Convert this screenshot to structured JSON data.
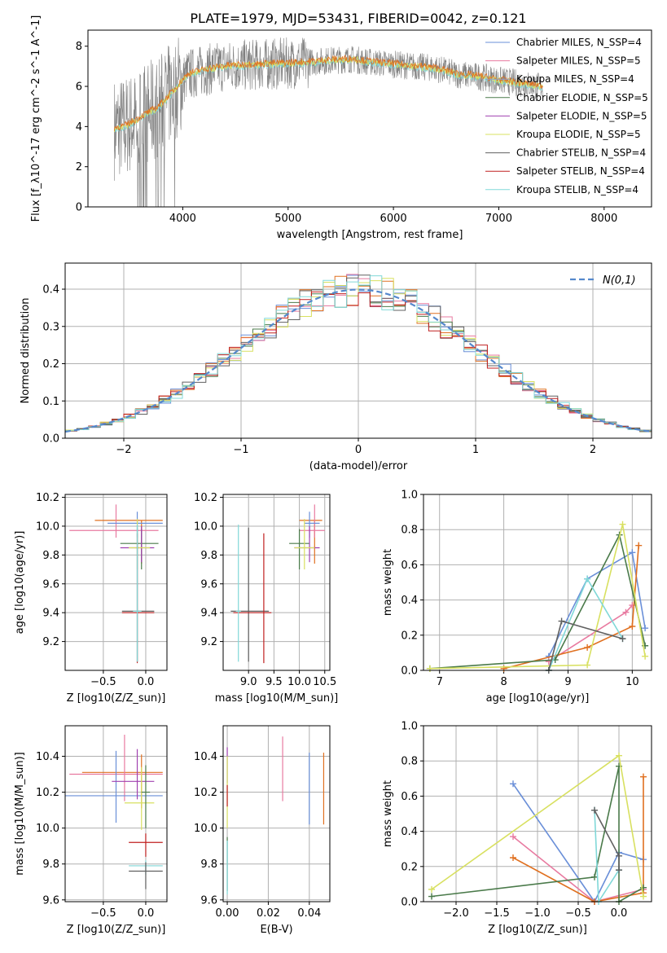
{
  "title": "PLATE=1979, MJD=53431, FIBERID=0042, z=0.121",
  "colors": {
    "chabrier_miles": "#6a8fd8",
    "salpeter_miles": "#e87aa0",
    "kroupa_miles": "#8aa0d0",
    "chabrier_elodie": "#e07020",
    "salpeter_elodie": "#a040b0",
    "kroupa_elodie": "#d8e060",
    "chabrier_stelib": "#606060",
    "salpeter_stelib": "#c02020",
    "kroupa_stelib": "#80d8d8",
    "extra_green": "#4a7a4a",
    "gauss": "#5588cc",
    "grid": "#b0b0b0"
  },
  "chart_data": [
    {
      "id": "spectrum",
      "type": "line",
      "xlabel": "wavelength [Angstrom, rest frame]",
      "ylabel": "Flux [f_λ10^-17 erg cm^-2 s^-1 A^-1]",
      "xlim": [
        3100,
        8450
      ],
      "ylim": [
        0,
        8.8
      ],
      "xticks": [
        4000,
        5000,
        6000,
        7000,
        8000
      ],
      "yticks": [
        0,
        2,
        4,
        6,
        8
      ],
      "grid": false,
      "legend_position": "top-right",
      "legend": [
        {
          "label": "Chabrier MILES, N_SSP=4",
          "color": "#6a8fd8"
        },
        {
          "label": "Salpeter MILES, N_SSP=5",
          "color": "#e87aa0"
        },
        {
          "label": "Kroupa MILES, N_SSP=4",
          "color": "#8aa0d0"
        },
        {
          "label": "Chabrier ELODIE, N_SSP=5",
          "color": "#4a7a4a"
        },
        {
          "label": "Salpeter ELODIE, N_SSP=5",
          "color": "#a040b0"
        },
        {
          "label": "Kroupa ELODIE, N_SSP=5",
          "color": "#d8e060"
        },
        {
          "label": "Chabrier STELIB, N_SSP=4",
          "color": "#606060"
        },
        {
          "label": "Salpeter STELIB, N_SSP=4",
          "color": "#c02020"
        },
        {
          "label": "Kroupa STELIB, N_SSP=4",
          "color": "#80d8d8"
        }
      ],
      "model_continuum": {
        "x": [
          3350,
          3450,
          3550,
          3650,
          3750,
          3850,
          3950,
          4050,
          4200,
          4400,
          4600,
          4800,
          5000,
          5200,
          5400,
          5600,
          5800,
          6000,
          6200,
          6400,
          6600,
          6800,
          7000,
          7200,
          7400
        ],
        "y": [
          3.9,
          4.0,
          4.3,
          4.6,
          4.9,
          5.4,
          6.0,
          6.6,
          6.8,
          7.0,
          7.05,
          7.1,
          7.15,
          7.2,
          7.3,
          7.35,
          7.2,
          7.1,
          7.0,
          6.9,
          6.6,
          6.5,
          6.3,
          6.15,
          6.0
        ]
      }
    },
    {
      "id": "residual_hist",
      "type": "histogram",
      "xlabel": "(data-model)/error",
      "ylabel": "Normed distribution",
      "xlim": [
        -2.5,
        2.5
      ],
      "ylim": [
        0,
        0.47
      ],
      "xticks": [
        -2,
        -1,
        0,
        1,
        2
      ],
      "yticks": [
        0.0,
        0.1,
        0.2,
        0.3,
        0.4
      ],
      "grid": true,
      "legend_position": "top-right",
      "legend": [
        {
          "label": "N(0,1)",
          "color": "#5588cc",
          "style": "dashed"
        }
      ],
      "bin_width": 0.1,
      "bin_start": -2.5,
      "reference_series": {
        "name": "N(0,1)",
        "mean": 0,
        "sigma": 1
      }
    },
    {
      "id": "age_vs_Z",
      "type": "errorbar",
      "xlabel": "Z [log10(Z/Z_sun)]",
      "ylabel": "age  [log10(age/yr)]",
      "xlim": [
        -0.95,
        0.25
      ],
      "ylim": [
        9.0,
        10.22
      ],
      "xticks": [
        -0.5,
        0.0
      ],
      "yticks": [
        9.2,
        9.4,
        9.6,
        9.8,
        10.0,
        10.2
      ],
      "grid": true,
      "points": [
        {
          "x": -0.05,
          "y": 10.04,
          "xerr": [
            0.55,
            0.25
          ],
          "yerr": [
            0.3,
            0.0
          ],
          "color": "#e07020"
        },
        {
          "x": -0.35,
          "y": 9.97,
          "xerr": [
            0.55,
            0.5
          ],
          "yerr": [
            0.05,
            0.18
          ],
          "color": "#e87aa0"
        },
        {
          "x": -0.1,
          "y": 10.02,
          "xerr": [
            0.35,
            0.3
          ],
          "yerr": [
            0.1,
            0.08
          ],
          "color": "#6a8fd8"
        },
        {
          "x": -0.05,
          "y": 9.88,
          "xerr": [
            0.25,
            0.2
          ],
          "yerr": [
            0.18,
            0.1
          ],
          "color": "#4a7a4a"
        },
        {
          "x": -0.05,
          "y": 9.85,
          "xerr": [
            0.25,
            0.15
          ],
          "yerr": [
            0.1,
            0.15
          ],
          "color": "#a040b0"
        },
        {
          "x": -0.1,
          "y": 9.85,
          "xerr": [
            0.1,
            0.15
          ],
          "yerr": [
            0.15,
            0.2
          ],
          "color": "#d8e060"
        },
        {
          "x": -0.1,
          "y": 9.41,
          "xerr": [
            0.18,
            0.2
          ],
          "yerr": [
            0.35,
            0.58
          ],
          "color": "#606060"
        },
        {
          "x": -0.1,
          "y": 9.4,
          "xerr": [
            0.18,
            0.2
          ],
          "yerr": [
            0.35,
            0.55
          ],
          "color": "#c02020"
        },
        {
          "x": -0.1,
          "y": 9.41,
          "xerr": [
            0.05,
            0.05
          ],
          "yerr": [
            0.35,
            0.6
          ],
          "color": "#80d8d8"
        }
      ]
    },
    {
      "id": "age_vs_mass",
      "type": "errorbar",
      "xlabel": "mass [log10(M/M_sun)]",
      "ylabel": "",
      "xlim": [
        8.5,
        10.6
      ],
      "ylim": [
        9.0,
        10.22
      ],
      "xticks": [
        9.0,
        9.5,
        10.0,
        10.5
      ],
      "yticks": [
        9.2,
        9.4,
        9.6,
        9.8,
        10.0,
        10.2
      ],
      "grid": true,
      "points": [
        {
          "x": 10.3,
          "y": 10.04,
          "xerr": [
            0.3,
            0.15
          ],
          "yerr": [
            0.3,
            0.0
          ],
          "color": "#e07020"
        },
        {
          "x": 10.3,
          "y": 9.97,
          "xerr": [
            0.3,
            0.2
          ],
          "yerr": [
            0.05,
            0.18
          ],
          "color": "#e87aa0"
        },
        {
          "x": 10.2,
          "y": 10.02,
          "xerr": [
            0.1,
            0.2
          ],
          "yerr": [
            0.1,
            0.08
          ],
          "color": "#6a8fd8"
        },
        {
          "x": 10.0,
          "y": 9.88,
          "xerr": [
            0.2,
            0.2
          ],
          "yerr": [
            0.18,
            0.1
          ],
          "color": "#4a7a4a"
        },
        {
          "x": 10.2,
          "y": 9.85,
          "xerr": [
            0.3,
            0.2
          ],
          "yerr": [
            0.1,
            0.15
          ],
          "color": "#a040b0"
        },
        {
          "x": 10.1,
          "y": 9.85,
          "xerr": [
            0.2,
            0.2
          ],
          "yerr": [
            0.15,
            0.2
          ],
          "color": "#d8e060"
        },
        {
          "x": 9.0,
          "y": 9.41,
          "xerr": [
            0.35,
            0.4
          ],
          "yerr": [
            0.35,
            0.58
          ],
          "color": "#606060"
        },
        {
          "x": 9.3,
          "y": 9.4,
          "xerr": [
            0.6,
            0.15
          ],
          "yerr": [
            0.35,
            0.55
          ],
          "color": "#c02020"
        },
        {
          "x": 8.8,
          "y": 9.41,
          "xerr": [
            0.05,
            0.05
          ],
          "yerr": [
            0.35,
            0.6
          ],
          "color": "#80d8d8"
        }
      ]
    },
    {
      "id": "weight_vs_age",
      "type": "line",
      "xlabel": "age  [log10(age/yr)]",
      "ylabel": "mass weight",
      "xlim": [
        6.75,
        10.3
      ],
      "ylim": [
        0,
        1.0
      ],
      "xticks": [
        7,
        8,
        9,
        10
      ],
      "yticks": [
        0.0,
        0.2,
        0.4,
        0.6,
        0.8,
        1.0
      ],
      "grid": true,
      "series": [
        {
          "color": "#6a8fd8",
          "x": [
            8.7,
            9.3,
            10.0,
            10.2
          ],
          "y": [
            0.08,
            0.52,
            0.67,
            0.24
          ]
        },
        {
          "color": "#e87aa0",
          "x": [
            8.7,
            9.9,
            10.0
          ],
          "y": [
            0.05,
            0.33,
            0.37
          ]
        },
        {
          "color": "#e07020",
          "x": [
            8.0,
            9.3,
            10.0,
            10.1
          ],
          "y": [
            0.01,
            0.13,
            0.25,
            0.71
          ]
        },
        {
          "color": "#4a7a4a",
          "x": [
            6.85,
            8.8,
            9.8,
            10.2
          ],
          "y": [
            0.01,
            0.06,
            0.77,
            0.14
          ]
        },
        {
          "color": "#d8e060",
          "x": [
            6.85,
            9.3,
            9.85,
            10.2
          ],
          "y": [
            0.01,
            0.03,
            0.83,
            0.08
          ]
        },
        {
          "color": "#80d8d8",
          "x": [
            8.7,
            9.3,
            9.85
          ],
          "y": [
            0.0,
            0.52,
            0.18
          ]
        },
        {
          "color": "#606060",
          "x": [
            8.7,
            8.9,
            9.85
          ],
          "y": [
            0.0,
            0.28,
            0.18
          ]
        }
      ]
    },
    {
      "id": "mass_vs_Z",
      "type": "errorbar",
      "xlabel": "Z [log10(Z/Z_sun)]",
      "ylabel": "mass [log10(M/M_sun)]",
      "xlim": [
        -0.95,
        0.25
      ],
      "ylim": [
        9.59,
        10.57
      ],
      "xticks": [
        -0.5,
        0.0
      ],
      "yticks": [
        9.6,
        9.8,
        10.0,
        10.2,
        10.4
      ],
      "grid": true,
      "points": [
        {
          "x": -0.05,
          "y": 10.31,
          "xerr": [
            0.7,
            0.25
          ],
          "yerr": [
            0.2,
            0.1
          ],
          "color": "#e07020"
        },
        {
          "x": -0.25,
          "y": 10.3,
          "xerr": [
            0.65,
            0.45
          ],
          "yerr": [
            0.15,
            0.22
          ],
          "color": "#e87aa0"
        },
        {
          "x": -0.35,
          "y": 10.18,
          "xerr": [
            0.6,
            0.55
          ],
          "yerr": [
            0.15,
            0.25
          ],
          "color": "#6a8fd8"
        },
        {
          "x": -0.1,
          "y": 10.26,
          "xerr": [
            0.3,
            0.2
          ],
          "yerr": [
            0.1,
            0.18
          ],
          "color": "#a040b0"
        },
        {
          "x": -0.05,
          "y": 10.14,
          "xerr": [
            0.2,
            0.15
          ],
          "yerr": [
            0.15,
            0.2
          ],
          "color": "#d8e060"
        },
        {
          "x": 0.0,
          "y": 10.2,
          "xerr": [
            0.05,
            0.05
          ],
          "yerr": [
            0.2,
            0.15
          ],
          "color": "#4a7a4a"
        },
        {
          "x": 0.0,
          "y": 9.92,
          "xerr": [
            0.2,
            0.2
          ],
          "yerr": [
            0.08,
            0.05
          ],
          "color": "#c02020"
        },
        {
          "x": 0.0,
          "y": 9.79,
          "xerr": [
            0.2,
            0.2
          ],
          "yerr": [
            0.05,
            0.03
          ],
          "color": "#80d8d8"
        },
        {
          "x": 0.0,
          "y": 9.76,
          "xerr": [
            0.2,
            0.2
          ],
          "yerr": [
            0.1,
            0.05
          ],
          "color": "#606060"
        }
      ]
    },
    {
      "id": "mass_vs_ebv",
      "type": "errorbar",
      "xlabel": "E(B-V)",
      "ylabel": "",
      "xlim": [
        -0.002,
        0.05
      ],
      "ylim": [
        9.59,
        10.57
      ],
      "xticks": [
        0.0,
        0.02,
        0.04
      ],
      "yticks": [
        9.6,
        9.8,
        10.0,
        10.2,
        10.4
      ],
      "grid": true,
      "points": [
        {
          "x": 0.047,
          "y": 10.22,
          "yerr": [
            0.2,
            0.2
          ],
          "color": "#e07020"
        },
        {
          "x": 0.04,
          "y": 10.22,
          "yerr": [
            0.2,
            0.2
          ],
          "color": "#6a8fd8"
        },
        {
          "x": 0.027,
          "y": 10.33,
          "yerr": [
            0.18,
            0.18
          ],
          "color": "#e87aa0"
        },
        {
          "x": 0.0,
          "y": 10.35,
          "yerr": [
            0.1,
            0.1
          ],
          "color": "#a040b0"
        },
        {
          "x": 0.0,
          "y": 10.2,
          "yerr": [
            0.2,
            0.2
          ],
          "color": "#d8e060"
        },
        {
          "x": 0.0,
          "y": 10.18,
          "yerr": [
            0.06,
            0.06
          ],
          "color": "#c02020"
        },
        {
          "x": 0.0,
          "y": 9.8,
          "yerr": [
            0.15,
            0.15
          ],
          "color": "#4a7a4a"
        },
        {
          "x": 0.0,
          "y": 9.78,
          "yerr": [
            0.15,
            0.15
          ],
          "color": "#80d8d8"
        }
      ]
    },
    {
      "id": "weight_vs_Z",
      "type": "line",
      "xlabel": "Z [log10(Z/Z_sun)]",
      "ylabel": "mass weight",
      "xlim": [
        -2.4,
        0.4
      ],
      "ylim": [
        0,
        1.0
      ],
      "xticks": [
        -2.0,
        -1.5,
        -1.0,
        -0.5,
        0.0
      ],
      "yticks": [
        0.0,
        0.2,
        0.4,
        0.6,
        0.8,
        1.0
      ],
      "grid": true,
      "series": [
        {
          "color": "#6a8fd8",
          "x": [
            -1.3,
            -0.3,
            0.0,
            0.3
          ],
          "y": [
            0.67,
            0.0,
            0.28,
            0.24
          ]
        },
        {
          "color": "#e87aa0",
          "x": [
            -1.3,
            -0.3,
            0.3
          ],
          "y": [
            0.37,
            0.0,
            0.07
          ]
        },
        {
          "color": "#e07020",
          "x": [
            -1.3,
            -0.3,
            0.3,
            0.3
          ],
          "y": [
            0.25,
            0.0,
            0.05,
            0.71
          ]
        },
        {
          "color": "#4a7a4a",
          "x": [
            -2.3,
            -0.3,
            0.0,
            0.0,
            0.3
          ],
          "y": [
            0.03,
            0.14,
            0.77,
            0.0,
            0.08
          ]
        },
        {
          "color": "#d8e060",
          "x": [
            -2.3,
            0.0,
            0.3
          ],
          "y": [
            0.07,
            0.83,
            0.03
          ]
        },
        {
          "color": "#80d8d8",
          "x": [
            -0.3,
            -0.25,
            0.0
          ],
          "y": [
            0.52,
            0.0,
            0.18
          ]
        },
        {
          "color": "#606060",
          "x": [
            -0.3,
            0.0,
            0.0
          ],
          "y": [
            0.52,
            0.26,
            0.18
          ]
        }
      ]
    }
  ]
}
